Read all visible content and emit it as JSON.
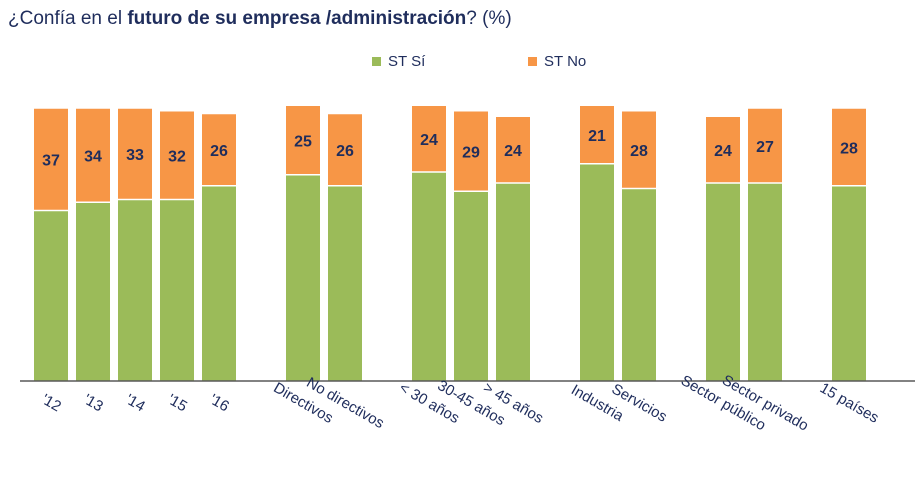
{
  "title": {
    "prefix": "¿Confía en el ",
    "bold": "futuro de su empresa /administración",
    "suffix": "? (%)"
  },
  "chart_data": {
    "type": "bar",
    "stacked": true,
    "ylim": [
      0,
      100
    ],
    "legend": {
      "placement": "top"
    },
    "categories": [
      "'12",
      "'13",
      "'14",
      "'15",
      "'16",
      "Directivos",
      "No directivos",
      "< 30 años",
      "30-45 años",
      "> 45 años",
      "Industria",
      "Servicios",
      "Sector público",
      "Sector privado",
      "15 países"
    ],
    "groups": [
      5,
      2,
      3,
      2,
      2,
      1
    ],
    "series": [
      {
        "name": "ST Sí",
        "color": "#9bbb59",
        "values": [
          62,
          65,
          66,
          66,
          71,
          75,
          71,
          76,
          69,
          72,
          79,
          70,
          72,
          72,
          71
        ]
      },
      {
        "name": "ST No",
        "color": "#f79646",
        "values": [
          37,
          34,
          33,
          32,
          26,
          25,
          26,
          24,
          29,
          24,
          21,
          28,
          24,
          27,
          28
        ]
      }
    ]
  }
}
